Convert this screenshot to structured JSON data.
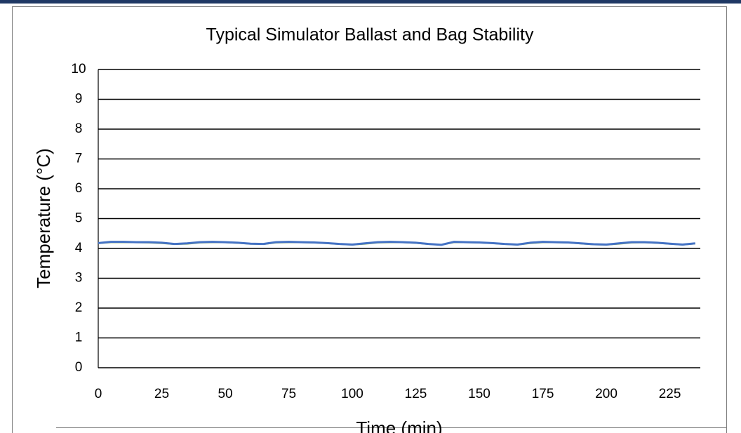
{
  "chart_data": {
    "type": "line",
    "title": "Typical Simulator Ballast and Bag Stability",
    "x_label": "Time (min)",
    "y_label": "Temperature (°C)",
    "x": [
      0,
      5,
      10,
      15,
      20,
      25,
      30,
      35,
      40,
      45,
      50,
      55,
      60,
      65,
      70,
      75,
      80,
      85,
      90,
      95,
      100,
      105,
      110,
      115,
      120,
      125,
      130,
      135,
      140,
      145,
      150,
      155,
      160,
      165,
      170,
      175,
      180,
      185,
      190,
      195,
      200,
      205,
      210,
      215,
      220,
      225,
      230,
      235
    ],
    "series": [
      {
        "color": "#9bbb59",
        "values": [
          4.17,
          4.2,
          4.2,
          4.2,
          4.19,
          4.17,
          4.14,
          4.15,
          4.19,
          4.2,
          4.2,
          4.18,
          4.15,
          4.14,
          4.19,
          4.2,
          4.2,
          4.19,
          4.17,
          4.14,
          4.12,
          4.15,
          4.19,
          4.2,
          4.2,
          4.18,
          4.14,
          4.12,
          4.2,
          4.2,
          4.19,
          4.17,
          4.14,
          4.12,
          4.17,
          4.2,
          4.2,
          4.19,
          4.16,
          4.13,
          4.12,
          4.15,
          4.19,
          4.2,
          4.18,
          4.15,
          4.12,
          4.16
        ]
      },
      {
        "color": "#4472c4",
        "values": [
          4.18,
          4.22,
          4.22,
          4.21,
          4.21,
          4.19,
          4.15,
          4.17,
          4.21,
          4.22,
          4.21,
          4.19,
          4.16,
          4.15,
          4.21,
          4.22,
          4.21,
          4.2,
          4.18,
          4.15,
          4.13,
          4.17,
          4.21,
          4.22,
          4.21,
          4.19,
          4.15,
          4.12,
          4.22,
          4.21,
          4.2,
          4.18,
          4.15,
          4.13,
          4.19,
          4.22,
          4.21,
          4.2,
          4.17,
          4.14,
          4.13,
          4.17,
          4.21,
          4.21,
          4.19,
          4.16,
          4.13,
          4.17
        ]
      }
    ],
    "xlim": [
      0,
      237
    ],
    "xticks": [
      0,
      25,
      50,
      75,
      100,
      125,
      150,
      175,
      200,
      225
    ],
    "ylim": [
      0,
      10
    ],
    "yticks": [
      0,
      1,
      2,
      3,
      4,
      5,
      6,
      7,
      8,
      9,
      10
    ],
    "grid": true
  }
}
